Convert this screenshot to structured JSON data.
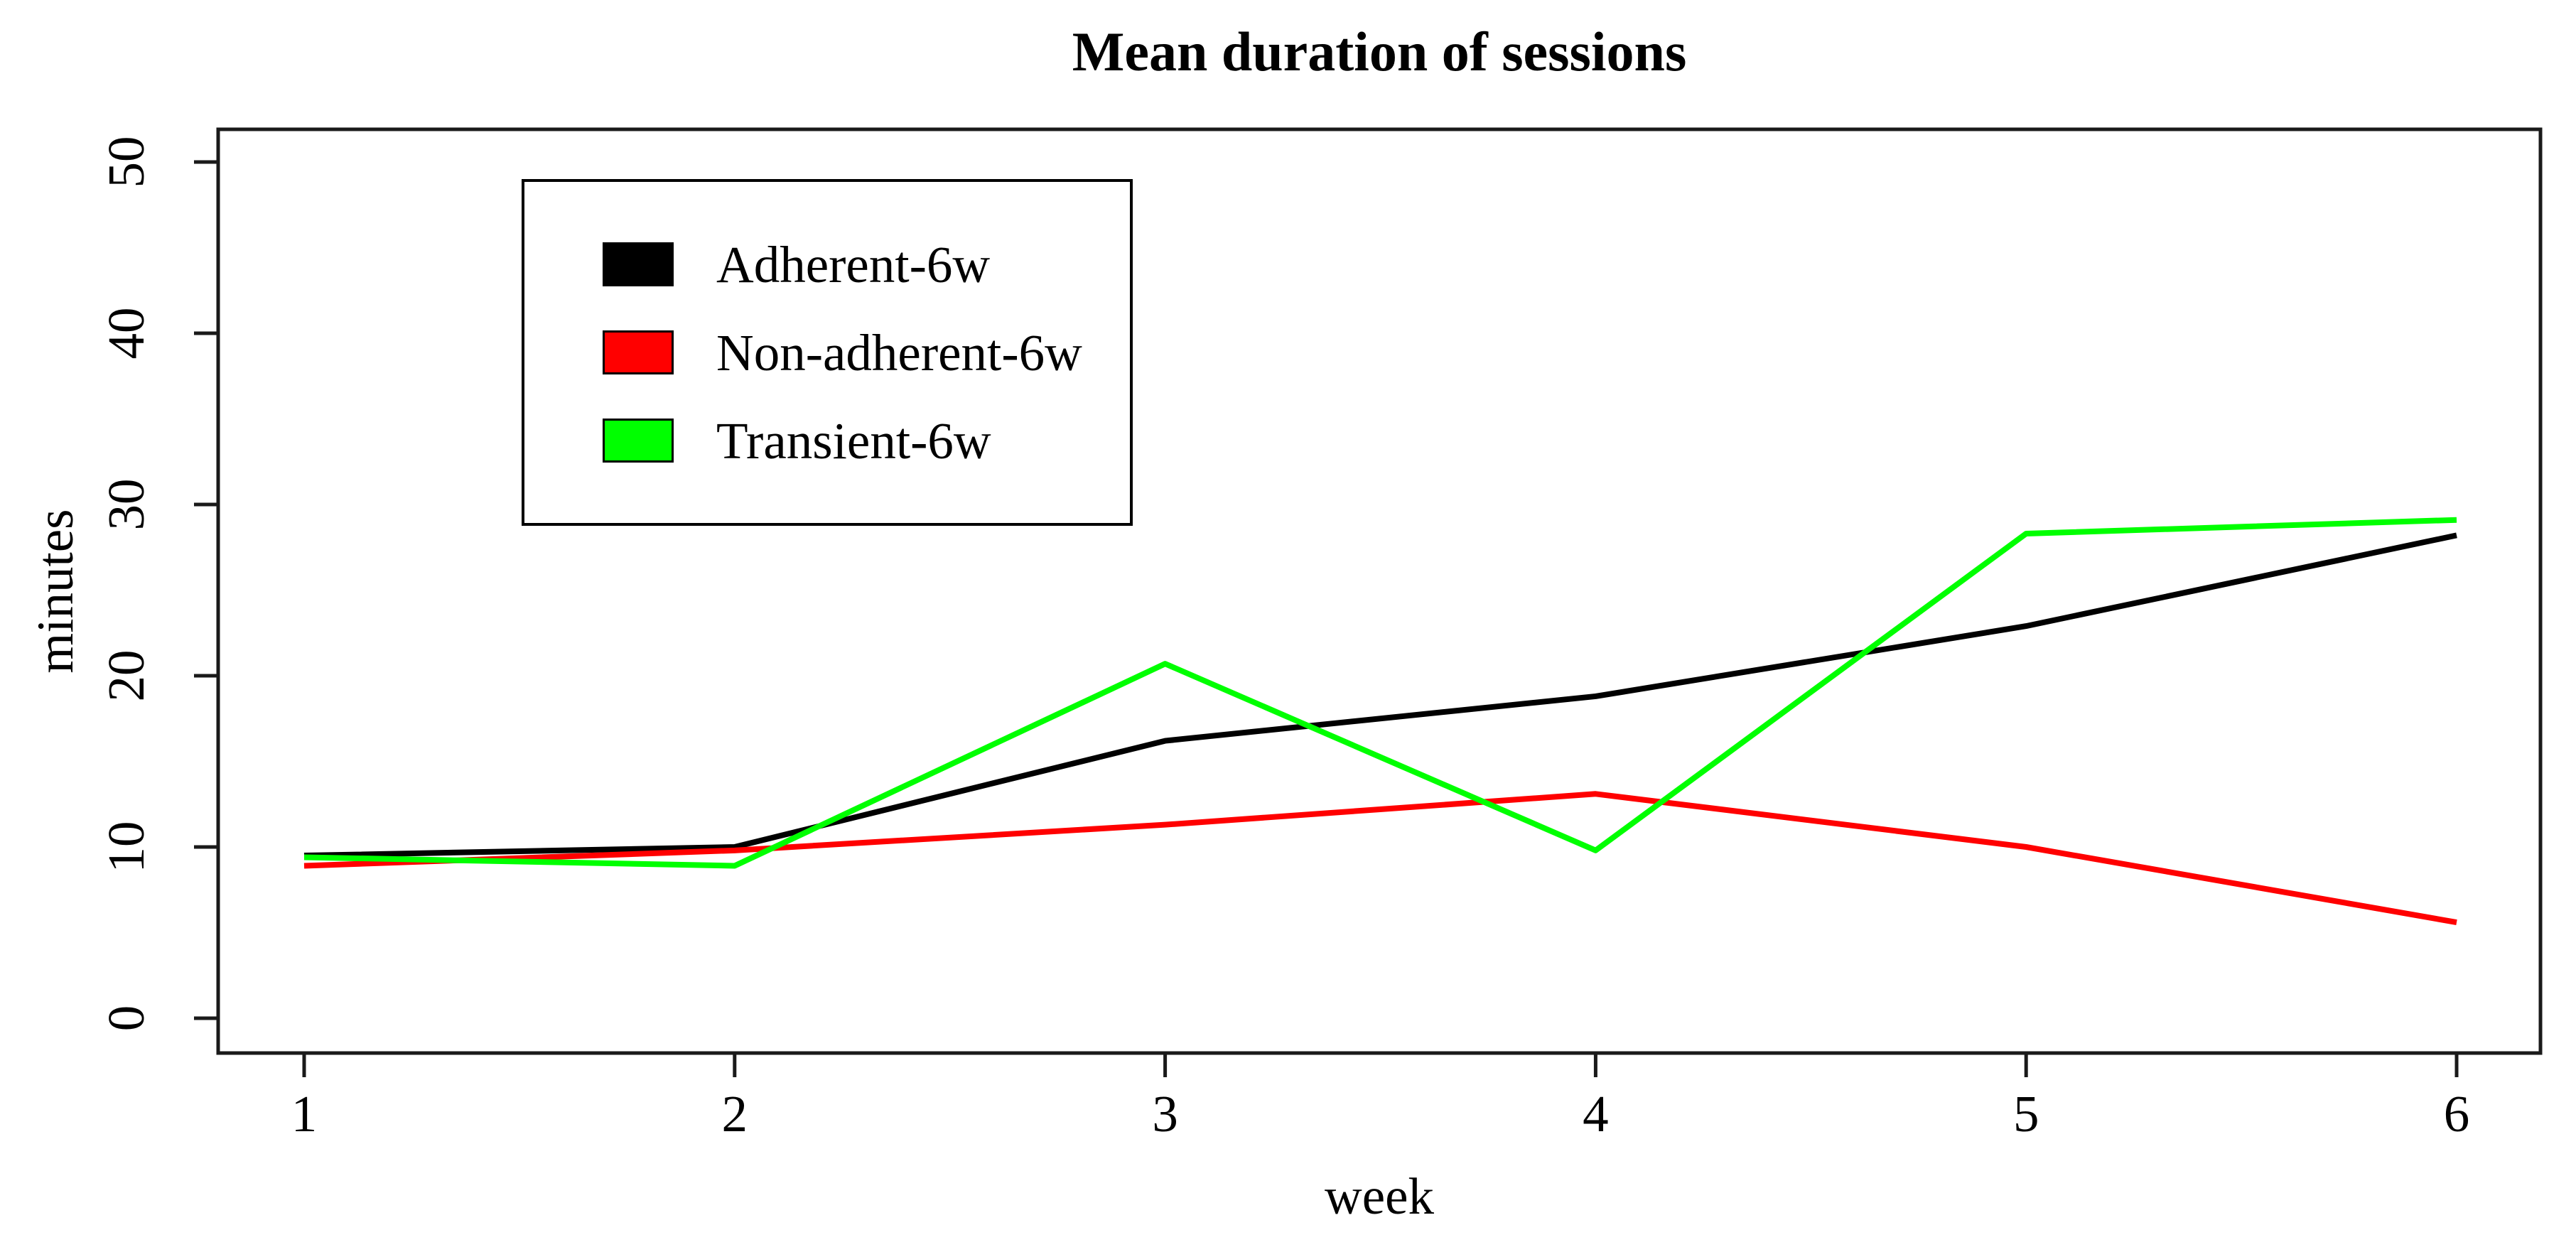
{
  "chart_data": {
    "type": "line",
    "title": "Mean duration of sessions",
    "xlabel": "week",
    "ylabel": "minutes",
    "x": [
      1,
      2,
      3,
      4,
      5,
      6
    ],
    "x_ticks": [
      1,
      2,
      3,
      4,
      5,
      6
    ],
    "y_ticks": [
      0,
      10,
      20,
      30,
      40,
      50
    ],
    "xlim": [
      1,
      6
    ],
    "ylim": [
      0,
      50
    ],
    "grid": false,
    "legend_position": "top-left-inside",
    "frame_color": "#1a1a1a",
    "series": [
      {
        "name": "Adherent-6w",
        "color": "#000000",
        "values": [
          9.5,
          10.0,
          16.2,
          18.8,
          22.9,
          28.2
        ]
      },
      {
        "name": "Non-adherent-6w",
        "color": "#ff0000",
        "values": [
          8.9,
          9.8,
          11.3,
          13.1,
          10.0,
          5.6
        ]
      },
      {
        "name": "Transient-6w",
        "color": "#00ff00",
        "values": [
          9.4,
          8.9,
          20.7,
          9.8,
          28.3,
          29.1
        ]
      }
    ]
  }
}
